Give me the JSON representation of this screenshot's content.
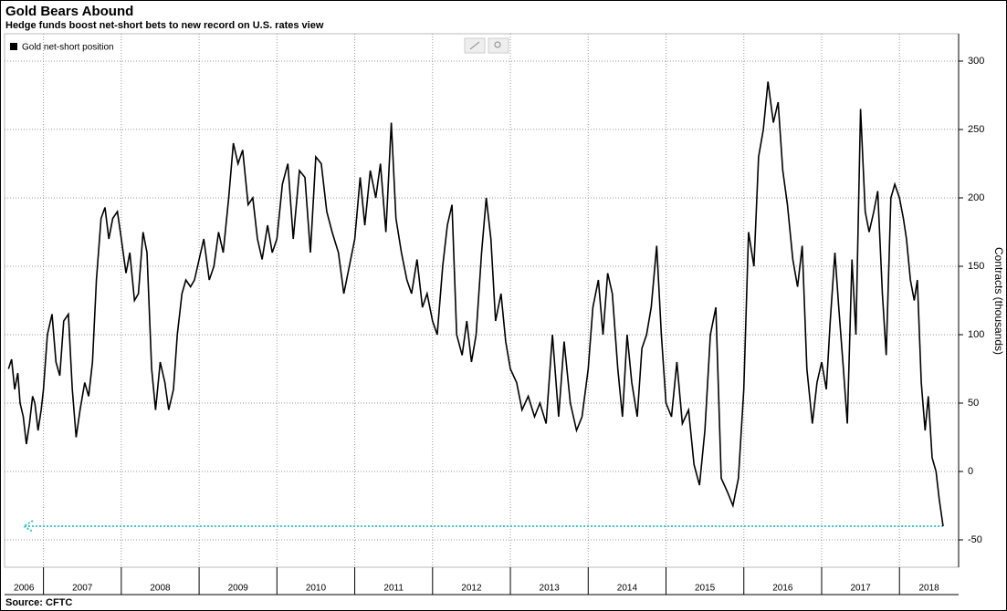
{
  "chart_data": {
    "type": "line",
    "title": "Gold Bears Abound",
    "subtitle": "Hedge funds boost net-short bets to new record on U.S. rates view",
    "y_label": "Contracts (thousands)",
    "source": "Source: CFTC",
    "legend_position": "top-left",
    "grid": true,
    "xlim": [
      2006.5,
      2018.76
    ],
    "xticks": [
      {
        "value": 2006,
        "label": "2006"
      },
      {
        "value": 2007,
        "label": "2007"
      },
      {
        "value": 2008,
        "label": "2008"
      },
      {
        "value": 2009,
        "label": "2009"
      },
      {
        "value": 2010,
        "label": "2010"
      },
      {
        "value": 2011,
        "label": "2011"
      },
      {
        "value": 2012,
        "label": "2012"
      },
      {
        "value": 2013,
        "label": "2013"
      },
      {
        "value": 2014,
        "label": "2014"
      },
      {
        "value": 2015,
        "label": "2015"
      },
      {
        "value": 2016,
        "label": "2016"
      },
      {
        "value": 2017,
        "label": "2017"
      },
      {
        "value": 2018,
        "label": "2018"
      }
    ],
    "ylim": [
      -70,
      320
    ],
    "yticks": [
      -50,
      0,
      50,
      100,
      150,
      200,
      250,
      300
    ],
    "reference_line": {
      "value": -40,
      "color": "#3fc8d0"
    },
    "x": [
      2006.55,
      2006.59,
      2006.63,
      2006.67,
      2006.7,
      2006.74,
      2006.78,
      2006.82,
      2006.86,
      2006.89,
      2006.93,
      2006.97,
      2007,
      2007.05,
      2007.11,
      2007.16,
      2007.21,
      2007.26,
      2007.32,
      2007.37,
      2007.42,
      2007.47,
      2007.53,
      2007.58,
      2007.63,
      2007.68,
      2007.74,
      2007.79,
      2007.84,
      2007.89,
      2007.95,
      2008,
      2008.06,
      2008.11,
      2008.17,
      2008.22,
      2008.28,
      2008.33,
      2008.39,
      2008.44,
      2008.5,
      2008.56,
      2008.61,
      2008.67,
      2008.72,
      2008.78,
      2008.83,
      2008.89,
      2008.94,
      2009,
      2009.06,
      2009.13,
      2009.19,
      2009.25,
      2009.31,
      2009.38,
      2009.44,
      2009.5,
      2009.56,
      2009.63,
      2009.69,
      2009.75,
      2009.81,
      2009.88,
      2009.94,
      2010,
      2010.07,
      2010.14,
      2010.21,
      2010.29,
      2010.36,
      2010.43,
      2010.5,
      2010.57,
      2010.64,
      2010.71,
      2010.79,
      2010.86,
      2010.93,
      2011,
      2011.07,
      2011.13,
      2011.2,
      2011.27,
      2011.33,
      2011.4,
      2011.47,
      2011.53,
      2011.6,
      2011.67,
      2011.73,
      2011.8,
      2011.87,
      2011.93,
      2012,
      2012.06,
      2012.13,
      2012.19,
      2012.25,
      2012.31,
      2012.38,
      2012.44,
      2012.5,
      2012.56,
      2012.63,
      2012.69,
      2012.75,
      2012.81,
      2012.88,
      2012.94,
      2013,
      2013.08,
      2013.15,
      2013.23,
      2013.31,
      2013.38,
      2013.46,
      2013.54,
      2013.62,
      2013.69,
      2013.77,
      2013.85,
      2013.92,
      2014,
      2014.06,
      2014.13,
      2014.19,
      2014.25,
      2014.31,
      2014.38,
      2014.44,
      2014.5,
      2014.56,
      2014.63,
      2014.69,
      2014.75,
      2014.81,
      2014.88,
      2014.94,
      2015,
      2015.07,
      2015.14,
      2015.21,
      2015.29,
      2015.36,
      2015.43,
      2015.5,
      2015.57,
      2015.64,
      2015.71,
      2015.79,
      2015.86,
      2015.93,
      2016,
      2016.06,
      2016.13,
      2016.19,
      2016.25,
      2016.31,
      2016.38,
      2016.44,
      2016.5,
      2016.56,
      2016.63,
      2016.69,
      2016.75,
      2016.81,
      2016.88,
      2016.94,
      2017,
      2017.06,
      2017.11,
      2017.17,
      2017.22,
      2017.28,
      2017.33,
      2017.39,
      2017.44,
      2017.5,
      2017.56,
      2017.61,
      2017.67,
      2017.72,
      2017.78,
      2017.83,
      2017.89,
      2017.94,
      2018,
      2018.05,
      2018.09,
      2018.14,
      2018.19,
      2018.23,
      2018.28,
      2018.33,
      2018.37,
      2018.42,
      2018.47,
      2018.51,
      2018.56
    ],
    "series": [
      {
        "name": "Gold net-short position",
        "color": "#000000",
        "values": [
          75,
          82,
          60,
          72,
          50,
          40,
          20,
          35,
          55,
          50,
          30,
          45,
          60,
          100,
          115,
          80,
          70,
          110,
          115,
          60,
          25,
          45,
          65,
          55,
          80,
          140,
          185,
          193,
          170,
          185,
          190,
          170,
          145,
          160,
          125,
          130,
          175,
          160,
          75,
          45,
          80,
          65,
          45,
          60,
          100,
          130,
          140,
          135,
          140,
          155,
          170,
          140,
          150,
          175,
          160,
          200,
          240,
          225,
          235,
          195,
          200,
          170,
          155,
          180,
          160,
          170,
          210,
          225,
          170,
          220,
          215,
          160,
          230,
          225,
          190,
          175,
          160,
          130,
          150,
          170,
          215,
          180,
          220,
          200,
          225,
          175,
          255,
          185,
          160,
          140,
          130,
          155,
          120,
          130,
          110,
          100,
          150,
          180,
          195,
          100,
          85,
          110,
          80,
          100,
          160,
          200,
          170,
          110,
          130,
          95,
          75,
          65,
          45,
          55,
          40,
          50,
          35,
          100,
          40,
          95,
          50,
          30,
          40,
          75,
          120,
          140,
          100,
          145,
          130,
          75,
          40,
          100,
          65,
          40,
          90,
          100,
          120,
          165,
          100,
          50,
          40,
          80,
          35,
          45,
          5,
          -10,
          30,
          100,
          120,
          -5,
          -15,
          -25,
          -5,
          60,
          175,
          150,
          230,
          250,
          285,
          255,
          270,
          220,
          195,
          155,
          135,
          165,
          75,
          35,
          65,
          80,
          60,
          110,
          160,
          120,
          75,
          35,
          155,
          100,
          265,
          190,
          175,
          190,
          205,
          130,
          85,
          200,
          210,
          200,
          185,
          170,
          140,
          125,
          140,
          65,
          30,
          55,
          10,
          0,
          -20,
          -40
        ]
      }
    ]
  }
}
